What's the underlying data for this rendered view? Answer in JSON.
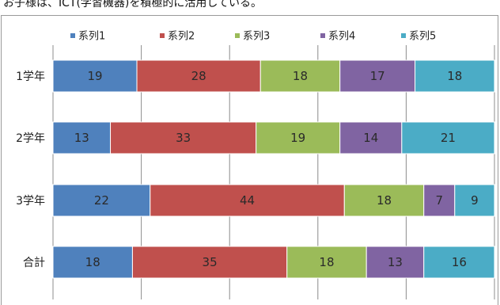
{
  "caption_fragment": "お子様は、ICT(学習機器)を積極的に活用している。",
  "chart_data": {
    "type": "bar",
    "orientation": "horizontal",
    "stacked": "percent",
    "title": "",
    "xlabel": "",
    "ylabel": "",
    "xlim": [
      0,
      100
    ],
    "grid": true,
    "legend_position": "top",
    "categories": [
      "1学年",
      "2学年",
      "3学年",
      "合計"
    ],
    "series": [
      {
        "name": "系列1",
        "color": "#4f81bd",
        "values": [
          19,
          13,
          22,
          18
        ]
      },
      {
        "name": "系列2",
        "color": "#c0504d",
        "values": [
          28,
          33,
          44,
          35
        ]
      },
      {
        "name": "系列3",
        "color": "#9bbb59",
        "values": [
          18,
          19,
          18,
          18
        ]
      },
      {
        "name": "系列4",
        "color": "#8064a2",
        "values": [
          17,
          14,
          7,
          13
        ]
      },
      {
        "name": "系列5",
        "color": "#4bacc6",
        "values": [
          18,
          21,
          9,
          16
        ]
      }
    ]
  }
}
